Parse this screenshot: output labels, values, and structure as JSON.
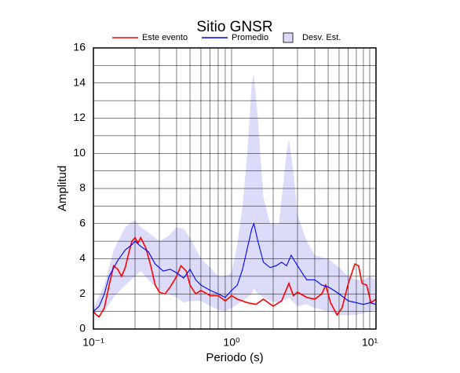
{
  "chart_data": {
    "type": "line",
    "title": "Sitio GNSR",
    "x_label": "Periodo (s)",
    "y_label": "Amplitud",
    "xscale": "log",
    "xlim": [
      0.1,
      11.1
    ],
    "ylim": [
      0,
      16
    ],
    "xticks": [
      {
        "value": 0.1,
        "label": "10⁻¹"
      },
      {
        "value": 1,
        "label": "10⁰"
      },
      {
        "value": 10,
        "label": "10¹"
      }
    ],
    "xminorticks": [
      0.2,
      0.3,
      0.4,
      0.5,
      0.6,
      0.7,
      0.8,
      0.9,
      2,
      3,
      4,
      5,
      6,
      7,
      8,
      9
    ],
    "yticks": [
      0,
      2,
      4,
      6,
      8,
      10,
      12,
      14,
      16
    ],
    "yminorticks": [
      1,
      3,
      5,
      7,
      9,
      11,
      13,
      15
    ],
    "grid": true,
    "legend": "top",
    "band": {
      "name": "Desv. Est.",
      "color": "#dcdcfa",
      "x": [
        0.1,
        0.12,
        0.14,
        0.17,
        0.2,
        0.22,
        0.25,
        0.3,
        0.35,
        0.4,
        0.45,
        0.5,
        0.6,
        0.7,
        0.8,
        0.9,
        1.0,
        1.1,
        1.2,
        1.3,
        1.4,
        1.45,
        1.55,
        1.7,
        1.9,
        2.2,
        2.5,
        2.6,
        2.8,
        3.0,
        3.5,
        4.0,
        5.0,
        6.0,
        7.0,
        8.0,
        9.0,
        10,
        11.1
      ],
      "upper": [
        1.2,
        2.5,
        4.5,
        5.8,
        6.2,
        5.8,
        5.5,
        5.0,
        5.3,
        5.8,
        5.7,
        5.2,
        4.0,
        3.5,
        3.0,
        3.0,
        3.2,
        4.8,
        7.0,
        10.0,
        14.0,
        14.5,
        12.0,
        7.5,
        6.0,
        6.0,
        10.0,
        10.8,
        9.0,
        6.5,
        5.0,
        4.2,
        4.0,
        3.5,
        3.0,
        2.8,
        2.8,
        3.0,
        2.8
      ],
      "lower": [
        0.9,
        1.0,
        1.8,
        2.5,
        3.0,
        3.3,
        2.8,
        2.2,
        2.0,
        1.8,
        1.5,
        1.6,
        1.6,
        1.3,
        1.1,
        1.0,
        1.2,
        1.4,
        1.6,
        1.8,
        2.0,
        2.3,
        2.0,
        1.8,
        1.6,
        1.5,
        1.7,
        1.8,
        1.5,
        1.3,
        1.4,
        1.2,
        1.0,
        0.8,
        0.8,
        0.8,
        0.9,
        1.0,
        1.1
      ]
    },
    "series": [
      {
        "name": "Este evento",
        "color": "#ff0000",
        "x": [
          0.1,
          0.105,
          0.11,
          0.12,
          0.13,
          0.14,
          0.15,
          0.16,
          0.17,
          0.18,
          0.19,
          0.2,
          0.21,
          0.22,
          0.24,
          0.26,
          0.28,
          0.3,
          0.33,
          0.36,
          0.4,
          0.43,
          0.47,
          0.5,
          0.55,
          0.6,
          0.7,
          0.8,
          0.9,
          1.0,
          1.1,
          1.2,
          1.3,
          1.5,
          1.7,
          2.0,
          2.3,
          2.6,
          2.8,
          3.0,
          3.5,
          4.0,
          4.5,
          4.8,
          5.2,
          5.8,
          6.3,
          7.0,
          7.8,
          8.3,
          8.8,
          9.5,
          10.2,
          11.1
        ],
        "values": [
          1.0,
          0.8,
          0.7,
          1.2,
          2.5,
          3.6,
          3.4,
          3.0,
          3.5,
          4.3,
          5.0,
          5.2,
          4.9,
          5.2,
          4.6,
          3.6,
          2.5,
          2.1,
          2.0,
          2.4,
          3.0,
          3.6,
          3.3,
          2.5,
          2.0,
          2.2,
          1.9,
          1.9,
          1.6,
          1.9,
          1.7,
          1.6,
          1.5,
          1.4,
          1.7,
          1.3,
          1.6,
          2.6,
          1.9,
          2.1,
          1.8,
          1.7,
          2.0,
          2.5,
          1.5,
          0.8,
          1.2,
          2.6,
          3.7,
          3.6,
          2.6,
          2.5,
          1.5,
          1.7
        ]
      },
      {
        "name": "Promedio",
        "color": "#0000ff",
        "x": [
          0.1,
          0.11,
          0.12,
          0.13,
          0.15,
          0.17,
          0.19,
          0.2,
          0.22,
          0.25,
          0.28,
          0.32,
          0.36,
          0.4,
          0.45,
          0.5,
          0.55,
          0.6,
          0.7,
          0.8,
          0.9,
          1.0,
          1.1,
          1.2,
          1.3,
          1.4,
          1.45,
          1.55,
          1.7,
          1.9,
          2.1,
          2.3,
          2.5,
          2.7,
          3.0,
          3.5,
          4.0,
          4.5,
          5.0,
          5.5,
          6.0,
          7.0,
          8.0,
          9.0,
          10.0,
          11.1
        ],
        "values": [
          1.0,
          1.3,
          2.0,
          3.0,
          3.9,
          4.5,
          4.8,
          5.0,
          4.7,
          4.4,
          3.7,
          3.3,
          3.4,
          3.2,
          2.9,
          3.4,
          2.8,
          2.5,
          2.2,
          2.0,
          1.8,
          2.2,
          2.5,
          3.4,
          4.6,
          5.7,
          6.0,
          5.0,
          3.8,
          3.5,
          3.6,
          3.8,
          3.6,
          4.2,
          3.6,
          2.8,
          2.8,
          2.5,
          2.4,
          2.2,
          2.0,
          1.6,
          1.5,
          1.4,
          1.5,
          1.4
        ]
      }
    ]
  }
}
